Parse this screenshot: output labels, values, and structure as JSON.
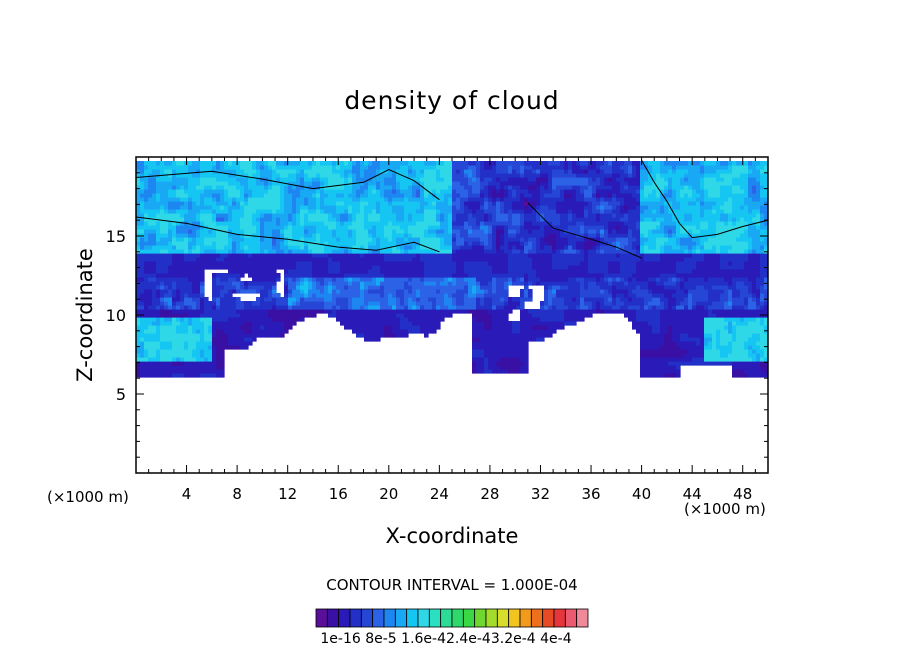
{
  "chart_data": {
    "type": "heatmap",
    "title": "density of cloud",
    "xlabel": "X-coordinate",
    "ylabel": "Z-coordinate",
    "x_unit": "(×1000 m)",
    "xlim": [
      0,
      50
    ],
    "ylim": [
      0,
      20
    ],
    "x_ticks": [
      4,
      8,
      12,
      16,
      20,
      24,
      28,
      32,
      36,
      40,
      44,
      48
    ],
    "y_ticks": [
      5,
      10,
      15
    ],
    "contour_interval_text": "CONTOUR INTERVAL = 1.000E-04",
    "colorbar": {
      "labels_text": "1e-16 8e-5 1.6e-42.4e-43.2e-4 4e-4",
      "min": "1e-16",
      "max": "4e-4",
      "colors": [
        "#5a0f9a",
        "#3a0fa3",
        "#2a1ab8",
        "#2230c8",
        "#2646d6",
        "#2c62e6",
        "#1e86f0",
        "#19a8f4",
        "#16c6f2",
        "#2fd8e6",
        "#2be0c0",
        "#2cdc96",
        "#2fd86a",
        "#3ad844",
        "#6ed830",
        "#a4dc2c",
        "#d8dc2a",
        "#f2c41f",
        "#f29a1c",
        "#ee701c",
        "#e84a26",
        "#e4363c",
        "#ec5a72",
        "#f08a98"
      ]
    },
    "cloud_base_km": 6,
    "cloud_top_km": 19.8,
    "cloud_free_gap_range_x": [
      7,
      40
    ],
    "cloud_free_gap_top_km": 8.3
  }
}
